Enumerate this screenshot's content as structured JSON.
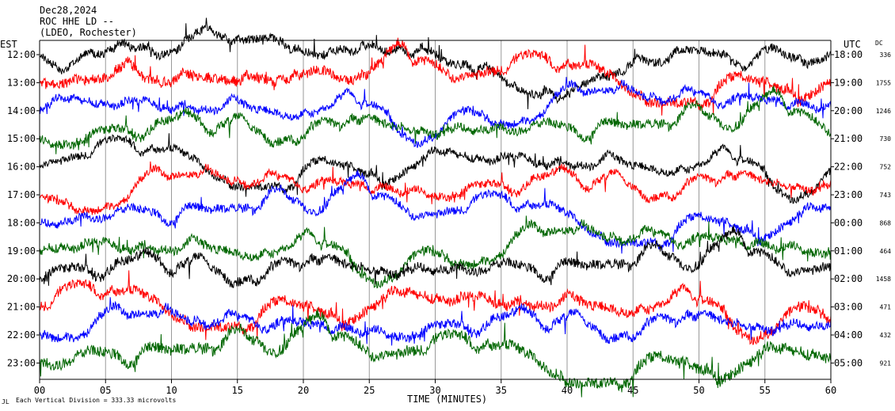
{
  "chart_data": {
    "type": "line",
    "title_lines": [
      "Dec28,2024",
      "ROC HHE LD --",
      "(LDEO, Rochester)"
    ],
    "left_axis_label": "EST",
    "right_axis_label": "UTC",
    "dc_label": "DC",
    "xlabel": "TIME (MINUTES)",
    "x_ticks": [
      "00",
      "05",
      "10",
      "15",
      "20",
      "25",
      "30",
      "35",
      "40",
      "45",
      "50",
      "55",
      "60"
    ],
    "xlim": [
      0,
      60
    ],
    "grid": "vertical",
    "footer": "Each Vertical Division =  333.33 microvolts",
    "footer_mark": "JL",
    "traces": [
      {
        "est": "12:00",
        "utc": "18:00",
        "dc": "336",
        "color": "#000000",
        "activity": 0.75
      },
      {
        "est": "13:00",
        "utc": "19:00",
        "dc": "1755",
        "color": "#ff0000",
        "activity": 0.9
      },
      {
        "est": "14:00",
        "utc": "20:00",
        "dc": "1246",
        "color": "#0000ff",
        "activity": 0.7
      },
      {
        "est": "15:00",
        "utc": "21:00",
        "dc": "730",
        "color": "#006600",
        "activity": 0.8
      },
      {
        "est": "16:00",
        "utc": "22:00",
        "dc": "752",
        "color": "#000000",
        "activity": 0.7
      },
      {
        "est": "17:00",
        "utc": "23:00",
        "dc": "743",
        "color": "#ff0000",
        "activity": 0.7
      },
      {
        "est": "18:00",
        "utc": "00:00",
        "dc": "868",
        "color": "#0000ff",
        "activity": 0.75
      },
      {
        "est": "19:00",
        "utc": "01:00",
        "dc": "464",
        "color": "#006600",
        "activity": 0.8
      },
      {
        "est": "20:00",
        "utc": "02:00",
        "dc": "1458",
        "color": "#000000",
        "activity": 0.85
      },
      {
        "est": "21:00",
        "utc": "03:00",
        "dc": "471",
        "color": "#ff0000",
        "activity": 0.9
      },
      {
        "est": "22:00",
        "utc": "04:00",
        "dc": "432",
        "color": "#0000ff",
        "activity": 0.8
      },
      {
        "est": "23:00",
        "utc": "05:00",
        "dc": "921",
        "color": "#006600",
        "activity": 1.0
      }
    ]
  }
}
